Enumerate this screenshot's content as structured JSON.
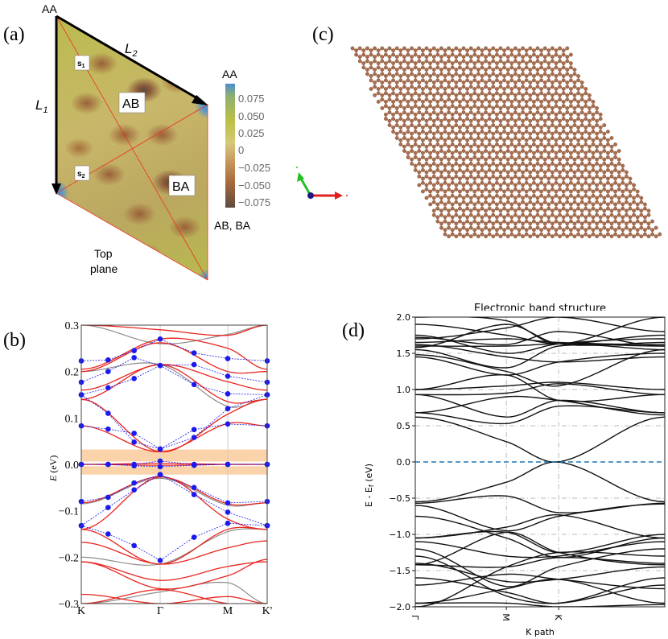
{
  "panels": {
    "a": {
      "label": "(a)",
      "corner_label": "AA",
      "L1": {
        "main": "L",
        "sub": "1"
      },
      "L2": {
        "main": "L",
        "sub": "2"
      },
      "s1": {
        "main": "s",
        "sub": "1"
      },
      "s2": {
        "main": "s",
        "sub": "2"
      },
      "region_ab": "AB",
      "region_ba": "BA",
      "colorbar_top": "AA",
      "colorbar_bottom": "AB, BA",
      "colorbar_ticks": [
        "0.075",
        "0.050",
        "0.025",
        "0",
        "−0.025",
        "−0.050",
        "−0.075"
      ],
      "caption_line1": "Top",
      "caption_line2": "plane"
    },
    "c": {
      "label": "(c)"
    },
    "b": {
      "label": "(b)"
    },
    "d": {
      "label": "(d)"
    }
  },
  "colors": {
    "red_band": "#e8261f",
    "gray_band": "#8c8c8c",
    "blue_dots": "#1a1aee",
    "highlight": "#fbd3aa",
    "black_band": "#111111",
    "fermi": "#1f77b4",
    "atom": "#a86e50"
  },
  "chart_data": [
    {
      "type": "line",
      "title": "",
      "xlabel": "",
      "ylabel": {
        "main": "E",
        "unit": " (eV)"
      },
      "ylim": [
        -0.3,
        0.3
      ],
      "xlim": [
        0,
        2.357
      ],
      "yticks": [
        0.3,
        0.2,
        0.1,
        0.0,
        -0.1,
        -0.2,
        -0.3
      ],
      "ytick_labels": [
        "0.3",
        "0.2",
        "0.1",
        "0.0",
        "−0.1",
        "−0.2",
        "−0.3"
      ],
      "xticks": [
        0,
        1,
        1.857,
        2.357
      ],
      "xtick_labels": [
        "K",
        "Γ",
        "M",
        "K'"
      ],
      "highlight_bands": [
        [
          0.006,
          0.032
        ],
        [
          -0.022,
          -0.004
        ]
      ],
      "band_nodes_x": [
        0,
        1,
        1.857,
        2.357
      ],
      "red_bands": [
        [
          0.083,
          0.027,
          0.088,
          0.083
        ],
        [
          0.14,
          0.027,
          0.108,
          0.14
        ],
        [
          0.14,
          0.215,
          0.135,
          0.14
        ],
        [
          0.16,
          0.215,
          0.178,
          0.16
        ],
        [
          0.2,
          0.262,
          0.2,
          0.2
        ],
        [
          0.205,
          0.27,
          0.25,
          0.205
        ],
        [
          0.3,
          0.29,
          0.278,
          0.3
        ],
        [
          0.0,
          0.002,
          0.0,
          0.0
        ],
        [
          0.0,
          -0.002,
          0.0,
          0.0
        ],
        [
          -0.083,
          -0.027,
          -0.085,
          -0.083
        ],
        [
          -0.14,
          -0.027,
          -0.118,
          -0.14
        ],
        [
          -0.14,
          -0.215,
          -0.14,
          -0.14
        ],
        [
          -0.168,
          -0.215,
          -0.18,
          -0.165
        ],
        [
          -0.21,
          -0.25,
          -0.22,
          -0.21
        ],
        [
          -0.21,
          -0.268,
          -0.24,
          -0.205
        ],
        [
          -0.28,
          -0.3,
          -0.285,
          -0.3
        ],
        [
          -0.3,
          -0.27,
          -0.3,
          -0.3
        ]
      ],
      "gray_bands": [
        [
          0.2,
          0.215,
          0.125,
          0.14
        ],
        [
          0.3,
          0.26,
          0.28,
          0.3
        ],
        [
          -0.2,
          -0.215,
          -0.145,
          -0.14
        ],
        [
          -0.3,
          -0.275,
          -0.255,
          -0.3
        ],
        [
          -0.085,
          -0.03,
          -0.088,
          -0.083
        ]
      ],
      "blue_x": [
        0,
        0.34,
        0.67,
        1,
        1.43,
        1.857,
        2.357
      ],
      "blue_series": [
        [
          0.223,
          0.225,
          0.245,
          0.27,
          0.24,
          0.228,
          0.223
        ],
        [
          0.177,
          0.2,
          0.23,
          0.213,
          0.215,
          0.19,
          0.177
        ],
        [
          0.15,
          0.165,
          0.185,
          0.213,
          0.172,
          0.152,
          0.15
        ],
        [
          0.083,
          0.076,
          0.067,
          0.033,
          0.075,
          0.087,
          0.083
        ],
        [
          0.15,
          0.11,
          0.048,
          0.033,
          0.058,
          0.12,
          0.15
        ],
        [
          0.0,
          0.0,
          0.0,
          0.007,
          0.0,
          0.0,
          0.0
        ],
        [
          0.0,
          0.0,
          -0.003,
          -0.005,
          -0.002,
          0.0,
          0.0
        ],
        [
          -0.08,
          -0.071,
          -0.04,
          -0.022,
          -0.05,
          -0.083,
          -0.08
        ],
        [
          -0.132,
          -0.093,
          -0.055,
          -0.022,
          -0.065,
          -0.103,
          -0.132
        ],
        [
          -0.132,
          -0.15,
          -0.175,
          -0.207,
          -0.157,
          -0.127,
          -0.132
        ]
      ]
    },
    {
      "type": "line",
      "title": "Electronic band structure",
      "xlabel": "K path",
      "ylabel": {
        "main": "E - E",
        "sub": "f",
        "unit": " (eV)"
      },
      "ylim": [
        -2.0,
        2.0
      ],
      "xlim": [
        0,
        2.74
      ],
      "yticks": [
        2.0,
        1.5,
        1.0,
        0.5,
        0.0,
        -0.5,
        -1.0,
        -1.5,
        -2.0
      ],
      "ytick_labels": [
        "2.0",
        "1.5",
        "1.0",
        "0.5",
        "0.0",
        "−0.5",
        "−1.0",
        "−1.5",
        "−2.0"
      ],
      "xticks": [
        0,
        1,
        1.575
      ],
      "xtick_labels": [
        "Γ",
        "M",
        "K"
      ],
      "grid": true,
      "fermi_level": 0.0,
      "band_nodes_x": [
        0,
        1,
        1.575,
        2.74
      ],
      "bands": [
        [
          0.62,
          0.28,
          0.0,
          0.62
        ],
        [
          -0.55,
          -0.28,
          0.0,
          -0.55
        ],
        [
          0.68,
          0.53,
          0.77,
          0.68
        ],
        [
          0.68,
          0.9,
          0.85,
          0.65
        ],
        [
          0.93,
          0.95,
          1.08,
          0.93
        ],
        [
          1.0,
          1.2,
          0.85,
          0.93
        ],
        [
          1.0,
          1.05,
          1.1,
          1.0
        ],
        [
          0.93,
          0.62,
          0.85,
          0.68
        ],
        [
          1.45,
          1.2,
          1.38,
          1.5
        ],
        [
          1.55,
          1.3,
          1.6,
          1.55
        ],
        [
          1.6,
          1.6,
          1.63,
          1.6
        ],
        [
          1.65,
          1.7,
          1.65,
          1.62
        ],
        [
          1.75,
          1.5,
          1.63,
          1.7
        ],
        [
          1.58,
          1.9,
          1.63,
          1.65
        ],
        [
          1.48,
          1.25,
          1.05,
          1.55
        ],
        [
          1.62,
          1.45,
          1.38,
          1.45
        ],
        [
          1.7,
          1.85,
          2.0,
          1.8
        ],
        [
          1.9,
          1.75,
          1.63,
          1.75
        ],
        [
          1.72,
          1.62,
          1.8,
          1.6
        ],
        [
          2.0,
          1.95,
          1.63,
          2.0
        ],
        [
          -0.57,
          -0.47,
          -0.7,
          -0.57
        ],
        [
          -0.6,
          -0.95,
          -0.75,
          -0.58
        ],
        [
          -1.05,
          -0.9,
          -0.73,
          -1.05
        ],
        [
          -1.05,
          -0.97,
          -1.25,
          -1.0
        ],
        [
          -1.1,
          -1.3,
          -1.3,
          -1.1
        ],
        [
          -1.42,
          -0.97,
          -1.25,
          -1.42
        ],
        [
          -1.42,
          -1.45,
          -1.32,
          -1.4
        ],
        [
          -1.4,
          -1.65,
          -1.62,
          -1.45
        ],
        [
          -1.6,
          -1.8,
          -1.95,
          -1.6
        ],
        [
          -1.95,
          -1.75,
          -1.62,
          -1.95
        ],
        [
          -1.95,
          -1.95,
          -2.0,
          -1.97
        ],
        [
          -1.7,
          -1.55,
          -1.62,
          -1.75
        ],
        [
          -1.3,
          -1.85,
          -1.95,
          -1.7
        ],
        [
          -2.0,
          -1.45,
          -1.25,
          -1.3
        ],
        [
          -0.75,
          -1.05,
          -1.32,
          -1.05
        ],
        [
          -1.2,
          -1.72,
          -1.45,
          -1.2
        ]
      ]
    }
  ]
}
